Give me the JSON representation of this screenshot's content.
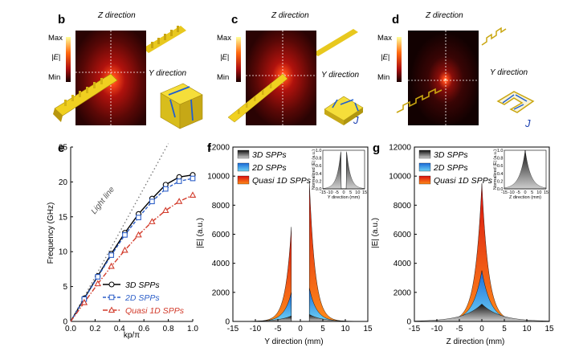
{
  "panels": {
    "b": {
      "letter": "b",
      "z_label": "Z direction",
      "y_label": "Y direction",
      "scale_max": "Max",
      "scale_field": "|E|",
      "scale_min": "Min",
      "current": "J"
    },
    "c": {
      "letter": "c",
      "z_label": "Z direction",
      "y_label": "Y direction",
      "scale_max": "Max",
      "scale_field": "|E|",
      "scale_min": "Min",
      "current": "J"
    },
    "d": {
      "letter": "d",
      "z_label": "Z direction",
      "y_label": "Y direction",
      "scale_max": "Max",
      "scale_field": "|E|",
      "scale_min": "Min",
      "current": "J"
    }
  },
  "colors": {
    "black_series": "#000000",
    "blue_series": "#2d5fc8",
    "red_series": "#d23a2a",
    "gold": "#e8c81e",
    "lightline": "#7d7d7d"
  },
  "chart_data": [
    {
      "panel": "e",
      "type": "line",
      "xlabel": "kp/π",
      "ylabel": "Frequency (GHz)",
      "xlim": [
        0,
        1.0
      ],
      "ylim": [
        0,
        25
      ],
      "xticks": [
        "0.0",
        "0.2",
        "0.4",
        "0.6",
        "0.8",
        "1.0"
      ],
      "yticks": [
        "0",
        "5",
        "10",
        "15",
        "20",
        "25"
      ],
      "annotation": "Light line",
      "lightline": {
        "x": [
          0,
          0.8
        ],
        "y": [
          0,
          25.5
        ]
      },
      "series": [
        {
          "name": "3D SPPs",
          "marker": "circle",
          "color": "#000000",
          "x": [
            0,
            0.111,
            0.222,
            0.333,
            0.444,
            0.556,
            0.667,
            0.778,
            0.889,
            1.0
          ],
          "y": [
            0,
            3.3,
            6.5,
            9.7,
            12.7,
            15.4,
            17.6,
            19.6,
            20.7,
            21.0
          ]
        },
        {
          "name": "2D SPPs",
          "marker": "square",
          "color": "#2d5fc8",
          "x": [
            0,
            0.111,
            0.222,
            0.333,
            0.444,
            0.556,
            0.667,
            0.778,
            0.889,
            1.0
          ],
          "y": [
            0,
            3.2,
            6.4,
            9.5,
            12.4,
            14.9,
            17.2,
            19.0,
            20.1,
            20.5
          ]
        },
        {
          "name": "Quasi 1D SPPs",
          "marker": "triangle",
          "color": "#d23a2a",
          "x": [
            0,
            0.111,
            0.222,
            0.333,
            0.444,
            0.556,
            0.667,
            0.778,
            0.889,
            1.0
          ],
          "y": [
            0,
            2.7,
            5.4,
            7.9,
            10.2,
            12.4,
            14.3,
            15.9,
            17.2,
            18.1
          ]
        }
      ]
    },
    {
      "panel": "f",
      "type": "area",
      "xlabel": "Y direction (mm)",
      "ylabel": "|E| (a.u.)",
      "xlim": [
        -15,
        15
      ],
      "ylim": [
        0,
        12000
      ],
      "xticks": [
        "-15",
        "-10",
        "-5",
        "0",
        "5",
        "10",
        "15"
      ],
      "yticks": [
        "0",
        "2000",
        "4000",
        "6000",
        "8000",
        "10000",
        "12000"
      ],
      "gap": [
        -2,
        2
      ],
      "series": [
        {
          "name": "3D SPPs",
          "peak_left": 380,
          "peak_right": 480,
          "decay": 2.8
        },
        {
          "name": "2D SPPs",
          "peak_left": 2000,
          "peak_right": 2300,
          "decay": 1.6
        },
        {
          "name": "Quasi 1D SPPs",
          "peak_left": 6500,
          "peak_right": 9600,
          "decay": 1.3
        }
      ],
      "inset": {
        "ylabel": "Normalized |E| (a.u.)",
        "xlabel": "Y direction (mm)",
        "xticks": [
          "-15",
          "-10",
          "-5",
          "0",
          "5",
          "10",
          "15"
        ],
        "yticks": [
          "0.0",
          "0.2",
          "0.4",
          "0.6",
          "0.8",
          "1.0"
        ]
      }
    },
    {
      "panel": "g",
      "type": "area",
      "xlabel": "Z direction (mm)",
      "ylabel": "|E| (a.u.)",
      "xlim": [
        -15,
        15
      ],
      "ylim": [
        0,
        12000
      ],
      "xticks": [
        "-15",
        "-10",
        "-5",
        "0",
        "5",
        "10",
        "15"
      ],
      "yticks": [
        "0",
        "2000",
        "4000",
        "6000",
        "8000",
        "10000",
        "12000"
      ],
      "series": [
        {
          "name": "3D SPPs",
          "peak": 1200,
          "decay": 4.0
        },
        {
          "name": "2D SPPs",
          "peak": 3500,
          "decay": 2.0
        },
        {
          "name": "Quasi 1D SPPs",
          "peak": 9500,
          "decay": 1.5
        }
      ],
      "inset": {
        "ylabel": "Normalized |E| (a.u.)",
        "xlabel": "Z direction (mm)",
        "xticks": [
          "-15",
          "-10",
          "-5",
          "0",
          "5",
          "10",
          "15"
        ],
        "yticks": [
          "0.0",
          "0.2",
          "0.4",
          "0.6",
          "0.8",
          "1.0"
        ]
      }
    }
  ]
}
